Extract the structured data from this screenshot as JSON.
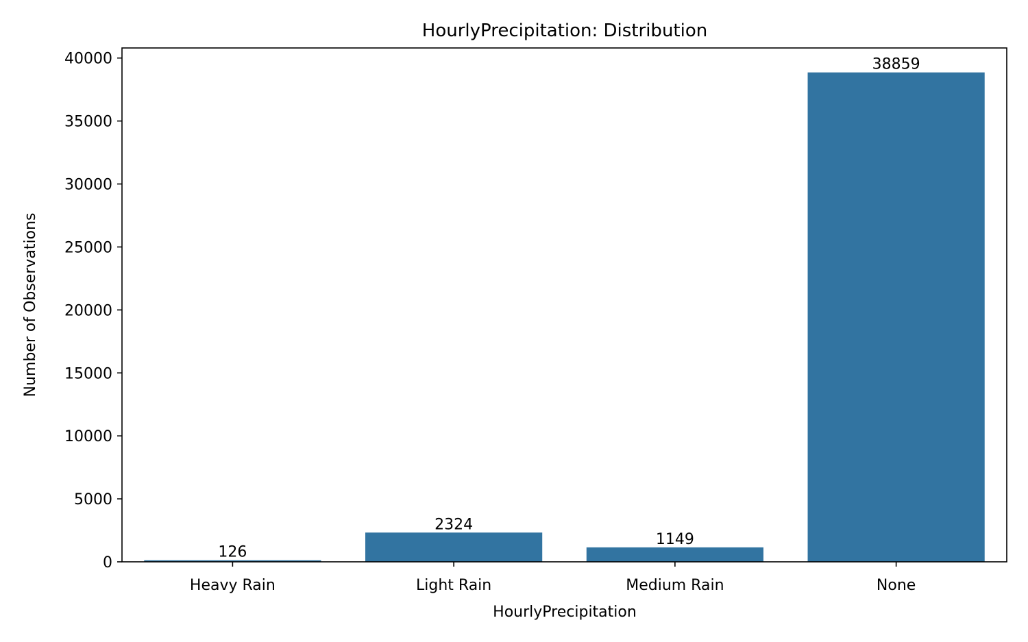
{
  "chart_data": {
    "type": "bar",
    "title": "HourlyPrecipitation: Distribution",
    "xlabel": "HourlyPrecipitation",
    "ylabel": "Number of Observations",
    "categories": [
      "Heavy Rain",
      "Light Rain",
      "Medium Rain",
      "None"
    ],
    "values": [
      126,
      2324,
      1149,
      38859
    ],
    "data_labels": [
      "126",
      "2324",
      "1149",
      "38859"
    ],
    "ylim": [
      0,
      40800
    ],
    "yticks": [
      0,
      5000,
      10000,
      15000,
      20000,
      25000,
      30000,
      35000,
      40000
    ],
    "ytick_labels": [
      "0",
      "5000",
      "10000",
      "15000",
      "20000",
      "25000",
      "30000",
      "35000",
      "40000"
    ],
    "grid": false,
    "legend": "none",
    "colors": {
      "bar": "#3274a1",
      "axis": "#000000"
    }
  }
}
